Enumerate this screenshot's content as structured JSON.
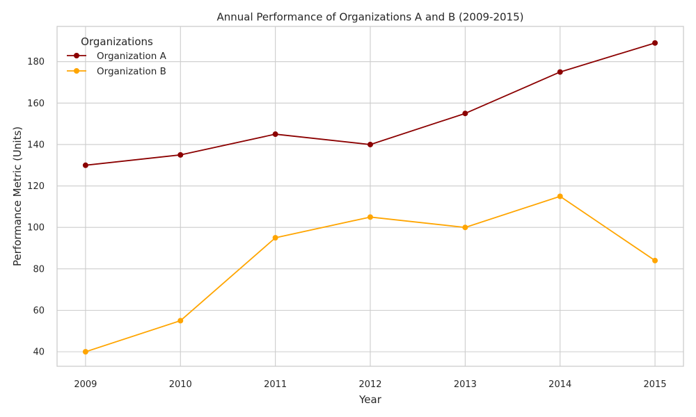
{
  "chart_data": {
    "type": "line",
    "title": "Annual Performance of Organizations A and B (2009-2015)",
    "xlabel": "Year",
    "ylabel": "Performance Metric (Units)",
    "x": [
      2009,
      2010,
      2011,
      2012,
      2013,
      2014,
      2015
    ],
    "x_tick_labels": [
      "2009",
      "2010",
      "2011",
      "2012",
      "2013",
      "2014",
      "2015"
    ],
    "xlim": [
      2008.7,
      2015.3
    ],
    "ylim": [
      33,
      197
    ],
    "y_ticks": [
      40,
      60,
      80,
      100,
      120,
      140,
      160,
      180
    ],
    "grid": true,
    "legend": {
      "title": "Organizations",
      "placement": "top-left"
    },
    "series": [
      {
        "name": "Organization A",
        "color": "#8b0000",
        "values": [
          130,
          135,
          145,
          140,
          155,
          175,
          189
        ]
      },
      {
        "name": "Organization B",
        "color": "#ffa500",
        "values": [
          40,
          55,
          95,
          105,
          100,
          115,
          84
        ]
      }
    ]
  }
}
